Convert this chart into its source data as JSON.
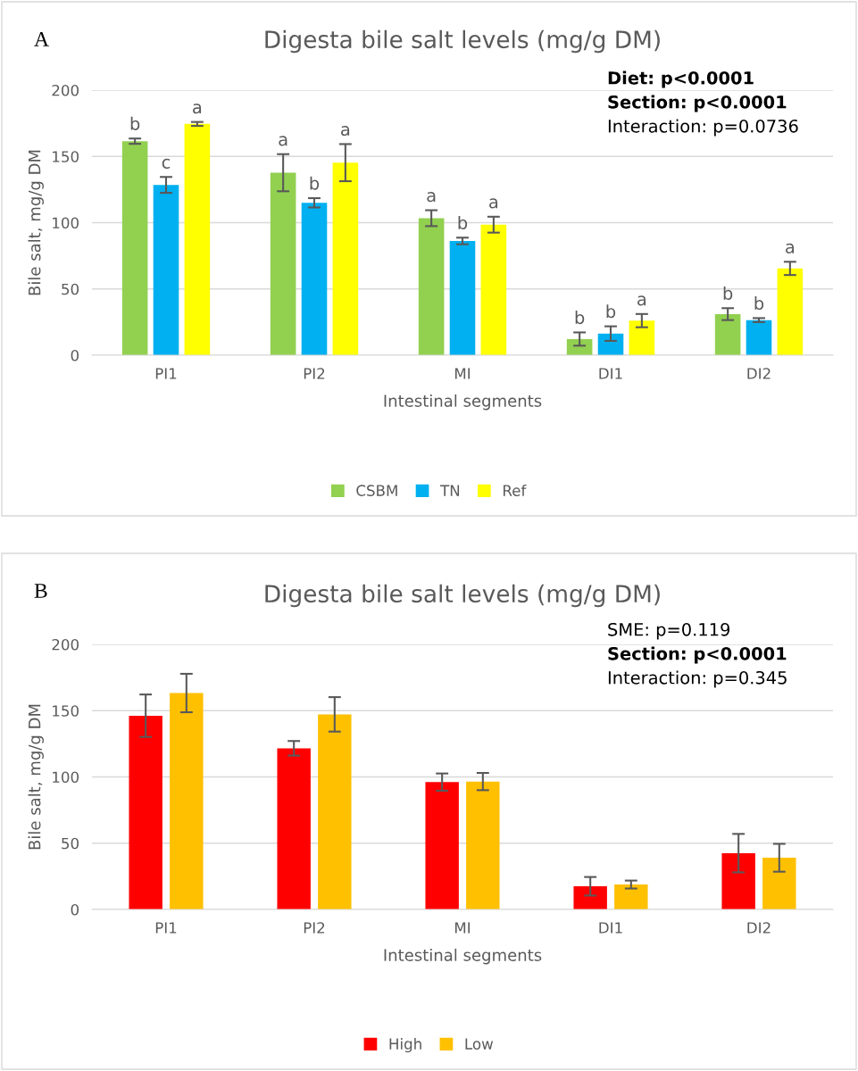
{
  "chart_data": [
    {
      "type": "bar",
      "title": "Digesta bile salt levels (mg/g DM)",
      "xlabel": "Intestinal segments",
      "ylabel": "Bile salt, mg/g DM",
      "categories": [
        "PI1",
        "PI2",
        "MI",
        "DI1",
        "DI2"
      ],
      "series": [
        {
          "name": "CSBM",
          "color": "#92d050",
          "values": [
            161.5,
            137.7,
            103.4,
            12.2,
            31
          ],
          "errors": [
            2,
            14,
            6,
            5,
            4.5
          ],
          "value_labels": [
            "b",
            "a",
            "a",
            "b",
            "b"
          ]
        },
        {
          "name": "TN",
          "color": "#00b0f0",
          "values": [
            128.5,
            115,
            86.2,
            16.3,
            26.5
          ],
          "errors": [
            6,
            3.5,
            2.5,
            5.5,
            1.5
          ],
          "value_labels": [
            "c",
            "b",
            "b",
            "b",
            "b"
          ]
        },
        {
          "name": "Ref",
          "color": "#ffff00",
          "values": [
            174.5,
            145.3,
            98.5,
            26.1,
            65.5
          ],
          "errors": [
            1.5,
            14,
            6,
            5,
            5
          ],
          "value_labels": [
            "a",
            "a",
            "a",
            "a",
            "a"
          ]
        }
      ],
      "ylim": [
        0,
        200
      ],
      "yticks": [
        0,
        50,
        100,
        150,
        200
      ],
      "grid": "y",
      "legend": "bottom",
      "annotations": [
        "A",
        "Diet: p<0.0001",
        "Section: p<0.0001",
        "Interaction: p=0.0736"
      ]
    },
    {
      "type": "bar",
      "title": "Digesta bile salt levels (mg/g DM)",
      "xlabel": "Intestinal segments",
      "ylabel": "Bile salt, mg/g DM",
      "categories": [
        "PI1",
        "PI2",
        "MI",
        "DI1",
        "DI2"
      ],
      "series": [
        {
          "name": "High",
          "color": "#ff0000",
          "values": [
            146.2,
            121.6,
            96.1,
            17.5,
            42.5
          ],
          "errors": [
            16,
            5.5,
            6.5,
            7,
            14.5
          ]
        },
        {
          "name": "Low",
          "color": "#ffc000",
          "values": [
            163.3,
            147.2,
            96.5,
            18.8,
            39
          ],
          "errors": [
            14.5,
            13,
            6.5,
            3,
            10.5
          ]
        }
      ],
      "ylim": [
        0,
        200
      ],
      "yticks": [
        0,
        50,
        100,
        150,
        200
      ],
      "grid": "y",
      "legend": "bottom",
      "annotations": [
        "B",
        "SME: p=0.119",
        "Section: p<0.0001",
        "Interaction: p=0.345"
      ]
    }
  ]
}
